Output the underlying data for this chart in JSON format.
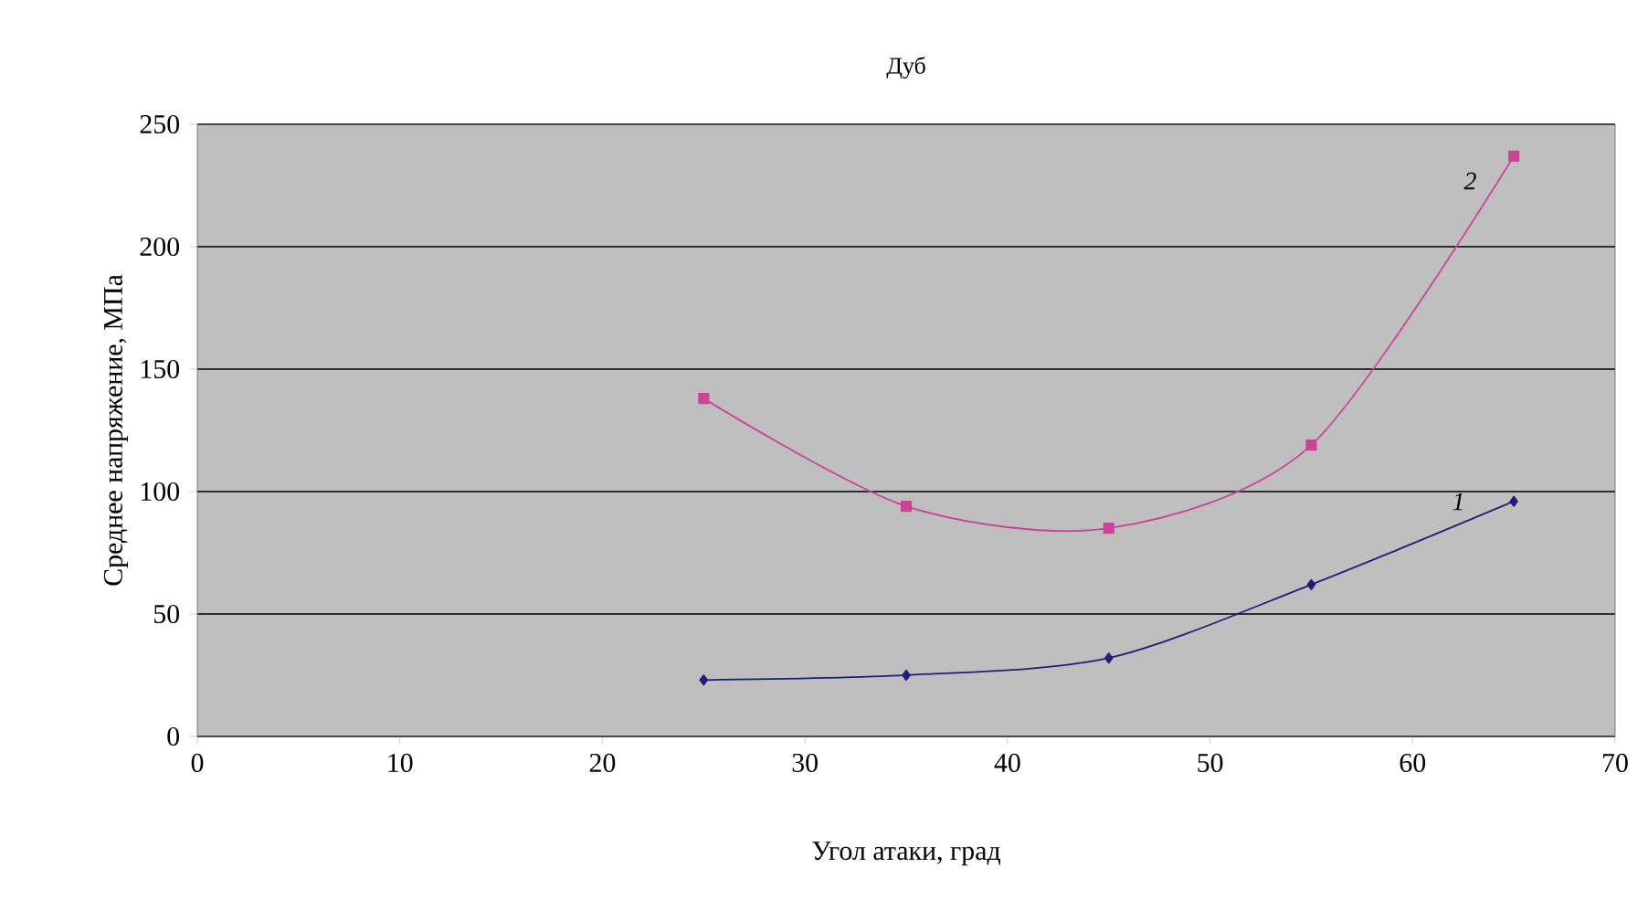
{
  "chart_data": {
    "type": "line",
    "title": "Дуб",
    "xlabel": "Угол атаки, град",
    "ylabel": "Среднее напряжение, МПа",
    "x": [
      25,
      35,
      45,
      55,
      65
    ],
    "series": [
      {
        "name": "1",
        "color": "#1f1f7a",
        "marker": "diamond",
        "values": [
          23,
          25,
          32,
          62,
          96
        ]
      },
      {
        "name": "2",
        "color": "#cc4499",
        "marker": "square",
        "values": [
          138,
          94,
          85,
          119,
          237
        ]
      }
    ],
    "xlim": [
      0,
      70
    ],
    "xticks": [
      0,
      10,
      20,
      30,
      40,
      50,
      60,
      70
    ],
    "ylim": [
      0,
      250
    ],
    "yticks": [
      0,
      50,
      100,
      150,
      200,
      250
    ],
    "grid": "y",
    "line_style": "solid"
  }
}
